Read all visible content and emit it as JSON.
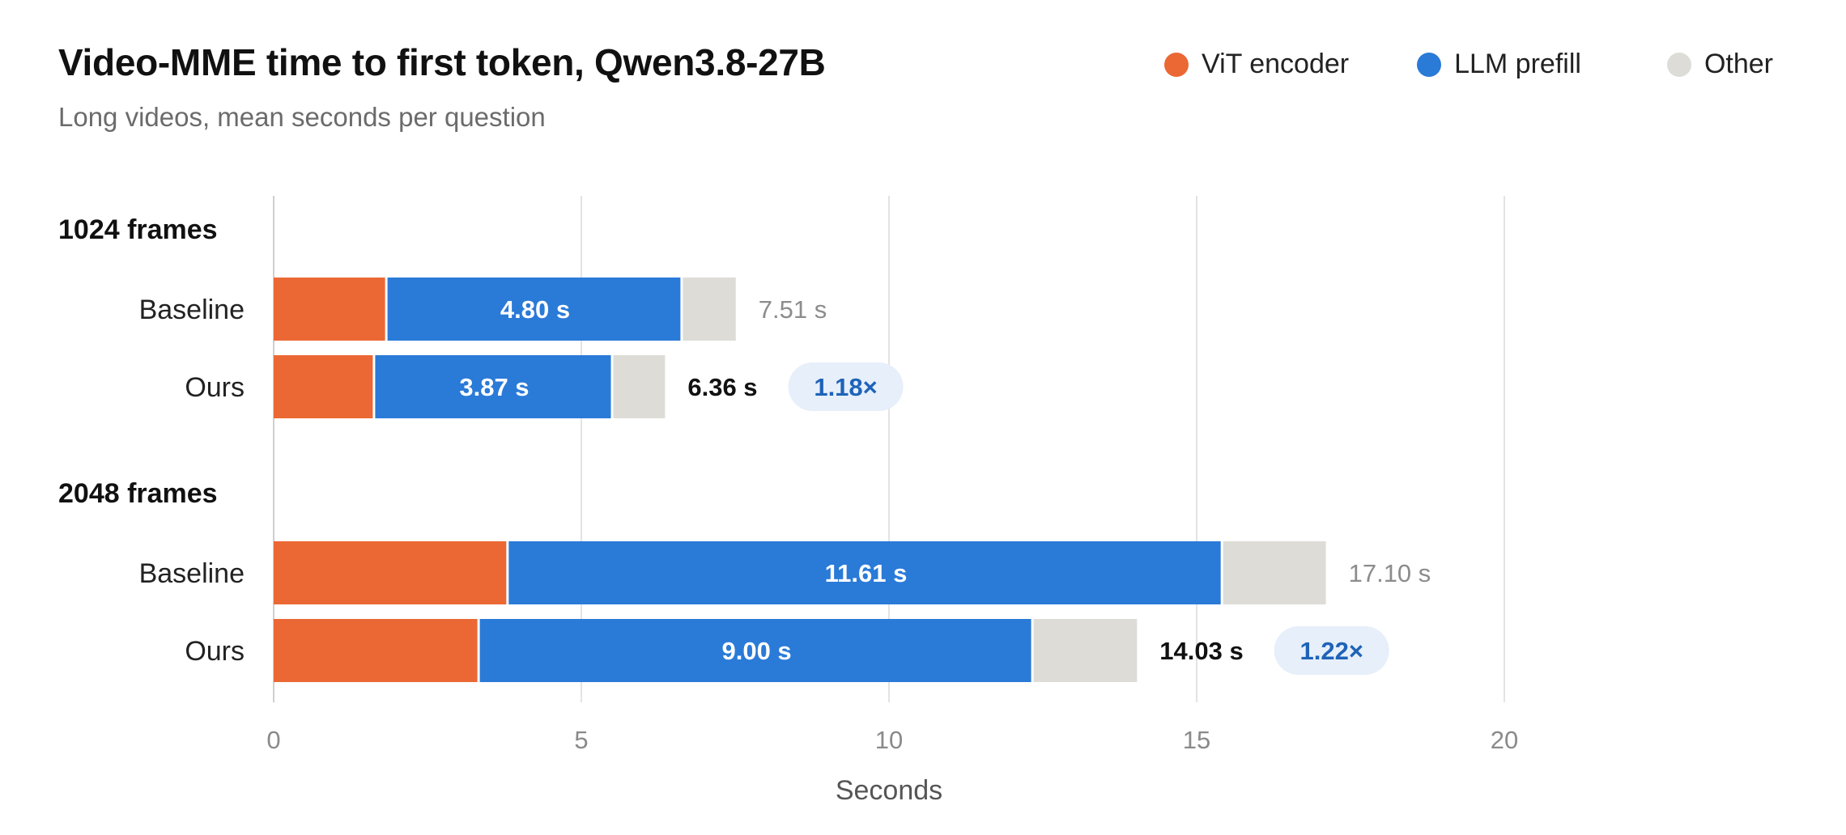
{
  "chart_data": {
    "type": "bar",
    "orientation": "horizontal",
    "stacked": true,
    "title": "Video-MME time to first token, Qwen3.8-27B",
    "subtitle": "Long videos, mean seconds per question",
    "xlabel": "Seconds",
    "xlim": [
      0,
      20
    ],
    "xticks": [
      "0",
      "5",
      "10",
      "15",
      "20"
    ],
    "grid": true,
    "legend_position": "top-right",
    "series": [
      {
        "key": "vit",
        "name": "ViT encoder",
        "color": "#EB6834"
      },
      {
        "key": "llm",
        "name": "LLM prefill",
        "color": "#2A7AD8"
      },
      {
        "key": "other",
        "name": "Other",
        "color": "#DEDCD7"
      }
    ],
    "groups": [
      {
        "label": "1024 frames",
        "bars": [
          {
            "label": "Baseline",
            "vit": 1.85,
            "llm": 4.8,
            "other": 0.86,
            "llm_label": "4.80 s",
            "total_label": "7.51 s",
            "highlight": false,
            "speedup": ""
          },
          {
            "label": "Ours",
            "vit": 1.65,
            "llm": 3.87,
            "other": 0.84,
            "llm_label": "3.87 s",
            "total_label": "6.36 s",
            "highlight": true,
            "speedup": "1.18×"
          }
        ]
      },
      {
        "label": "2048 frames",
        "bars": [
          {
            "label": "Baseline",
            "vit": 3.82,
            "llm": 11.61,
            "other": 1.67,
            "llm_label": "11.61 s",
            "total_label": "17.10 s",
            "highlight": false,
            "speedup": ""
          },
          {
            "label": "Ours",
            "vit": 3.35,
            "llm": 9.0,
            "other": 1.68,
            "llm_label": "9.00 s",
            "total_label": "14.03 s",
            "highlight": true,
            "speedup": "1.22×"
          }
        ]
      }
    ]
  }
}
